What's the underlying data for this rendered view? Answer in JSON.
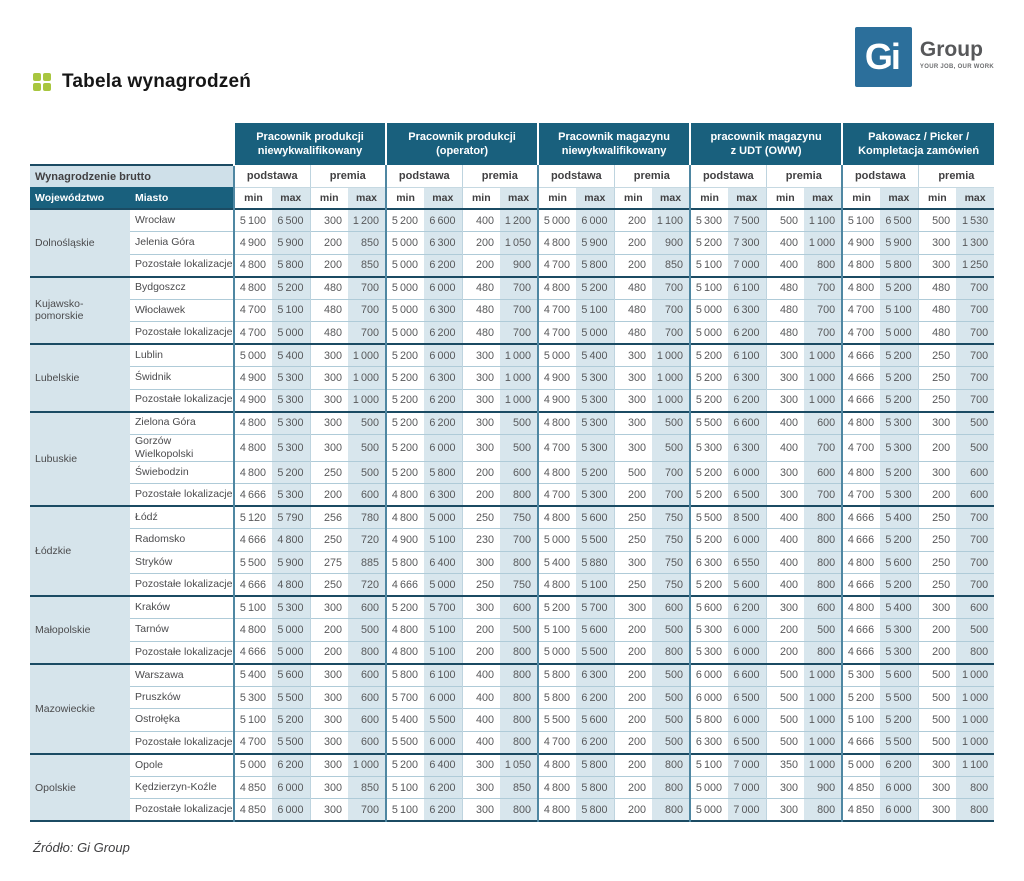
{
  "title": "Tabela wynagrodzeń",
  "source": "Źródło: Gi Group",
  "logo": {
    "mark": "Gi",
    "name": "Group",
    "tagline": "YOUR JOB, OUR WORK"
  },
  "colors": {
    "header_teal": "#19607D",
    "dark_separator": "#1B4B63",
    "max_cell_blue": "#D8E6ED",
    "region_cell_blue": "#D6E4EB",
    "accent_green": "#A8C63F",
    "logo_blue": "#2C6F9B"
  },
  "table": {
    "header_left": "Wynagrodzenie brutto",
    "col_region": "Województwo",
    "col_city": "Miasto",
    "sub_basic": "podstawa",
    "sub_bonus": "premia",
    "col_min": "min",
    "col_max": "max",
    "group_labels": [
      "Pracownik produkcji\nniewykwalifikowany",
      "Pracownik produkcji\n(operator)",
      "Pracownik magazynu\nniewykwalifikowany",
      "pracownik magazynu\nz UDT (OWW)",
      "Pakowacz / Picker /\nKompletacja zamówień"
    ],
    "regions": [
      {
        "name": "Dolnośląskie",
        "rows": [
          {
            "city": "Wrocław",
            "values": [
              5100,
              6500,
              300,
              1200,
              5200,
              6600,
              400,
              1200,
              5000,
              6000,
              200,
              1100,
              5300,
              7500,
              500,
              1100,
              5100,
              6500,
              500,
              1530
            ]
          },
          {
            "city": "Jelenia Góra",
            "values": [
              4900,
              5900,
              200,
              850,
              5000,
              6300,
              200,
              1050,
              4800,
              5900,
              200,
              900,
              5200,
              7300,
              400,
              1000,
              4900,
              5900,
              300,
              1300
            ]
          },
          {
            "city": "Pozostałe lokalizacje",
            "values": [
              4800,
              5800,
              200,
              850,
              5000,
              6200,
              200,
              900,
              4700,
              5800,
              200,
              850,
              5100,
              7000,
              400,
              800,
              4800,
              5800,
              300,
              1250
            ]
          }
        ]
      },
      {
        "name": "Kujawsko-pomorskie",
        "rows": [
          {
            "city": "Bydgoszcz",
            "values": [
              4800,
              5200,
              480,
              700,
              5000,
              6000,
              480,
              700,
              4800,
              5200,
              480,
              700,
              5100,
              6100,
              480,
              700,
              4800,
              5200,
              480,
              700
            ]
          },
          {
            "city": "Włocławek",
            "values": [
              4700,
              5100,
              480,
              700,
              5000,
              6300,
              480,
              700,
              4700,
              5100,
              480,
              700,
              5000,
              6300,
              480,
              700,
              4700,
              5100,
              480,
              700
            ]
          },
          {
            "city": "Pozostałe lokalizacje",
            "values": [
              4700,
              5000,
              480,
              700,
              5000,
              6200,
              480,
              700,
              4700,
              5000,
              480,
              700,
              5000,
              6200,
              480,
              700,
              4700,
              5000,
              480,
              700
            ]
          }
        ]
      },
      {
        "name": "Lubelskie",
        "rows": [
          {
            "city": "Lublin",
            "values": [
              5000,
              5400,
              300,
              1000,
              5200,
              6000,
              300,
              1000,
              5000,
              5400,
              300,
              1000,
              5200,
              6100,
              300,
              1000,
              4666,
              5200,
              250,
              700
            ]
          },
          {
            "city": "Świdnik",
            "values": [
              4900,
              5300,
              300,
              1000,
              5200,
              6300,
              300,
              1000,
              4900,
              5300,
              300,
              1000,
              5200,
              6300,
              300,
              1000,
              4666,
              5200,
              250,
              700
            ]
          },
          {
            "city": "Pozostałe lokalizacje",
            "values": [
              4900,
              5300,
              300,
              1000,
              5200,
              6200,
              300,
              1000,
              4900,
              5300,
              300,
              1000,
              5200,
              6200,
              300,
              1000,
              4666,
              5200,
              250,
              700
            ]
          }
        ]
      },
      {
        "name": "Lubuskie",
        "rows": [
          {
            "city": "Zielona Góra",
            "values": [
              4800,
              5300,
              300,
              500,
              5200,
              6200,
              300,
              500,
              4800,
              5300,
              300,
              500,
              5500,
              6600,
              400,
              600,
              4800,
              5300,
              300,
              500
            ]
          },
          {
            "city": "Gorzów\nWielkopolski",
            "values": [
              4800,
              5300,
              300,
              500,
              5200,
              6000,
              300,
              500,
              4700,
              5300,
              300,
              500,
              5300,
              6300,
              400,
              700,
              4700,
              5300,
              200,
              500
            ]
          },
          {
            "city": "Świebodzin",
            "values": [
              4800,
              5200,
              250,
              500,
              5200,
              5800,
              200,
              600,
              4800,
              5200,
              500,
              700,
              5200,
              6000,
              300,
              600,
              4800,
              5200,
              300,
              600
            ]
          },
          {
            "city": "Pozostałe lokalizacje",
            "values": [
              4666,
              5300,
              200,
              600,
              4800,
              6300,
              200,
              800,
              4700,
              5300,
              200,
              700,
              5200,
              6500,
              300,
              700,
              4700,
              5300,
              200,
              600
            ]
          }
        ]
      },
      {
        "name": "Łódzkie",
        "rows": [
          {
            "city": "Łódź",
            "values": [
              5120,
              5790,
              256,
              780,
              4800,
              5000,
              250,
              750,
              4800,
              5600,
              250,
              750,
              5500,
              8500,
              400,
              800,
              4666,
              5400,
              250,
              700
            ]
          },
          {
            "city": "Radomsko",
            "values": [
              4666,
              4800,
              250,
              720,
              4900,
              5100,
              230,
              700,
              5000,
              5500,
              250,
              750,
              5200,
              6000,
              400,
              800,
              4666,
              5200,
              250,
              700
            ]
          },
          {
            "city": "Stryków",
            "values": [
              5500,
              5900,
              275,
              885,
              5800,
              6400,
              300,
              800,
              5400,
              5880,
              300,
              750,
              6300,
              6550,
              400,
              800,
              4800,
              5600,
              250,
              700
            ]
          },
          {
            "city": "Pozostałe lokalizacje",
            "values": [
              4666,
              4800,
              250,
              720,
              4666,
              5000,
              250,
              750,
              4800,
              5100,
              250,
              750,
              5200,
              5600,
              400,
              800,
              4666,
              5200,
              250,
              700
            ]
          }
        ]
      },
      {
        "name": "Małopolskie",
        "rows": [
          {
            "city": "Kraków",
            "values": [
              5100,
              5300,
              300,
              600,
              5200,
              5700,
              300,
              600,
              5200,
              5700,
              300,
              600,
              5600,
              6200,
              300,
              600,
              4800,
              5400,
              300,
              600
            ]
          },
          {
            "city": "Tarnów",
            "values": [
              4800,
              5000,
              200,
              500,
              4800,
              5100,
              200,
              500,
              5100,
              5600,
              200,
              500,
              5300,
              6000,
              200,
              500,
              4666,
              5300,
              200,
              500
            ]
          },
          {
            "city": "Pozostałe lokalizacje",
            "values": [
              4666,
              5000,
              200,
              800,
              4800,
              5100,
              200,
              800,
              5000,
              5500,
              200,
              800,
              5300,
              6000,
              200,
              800,
              4666,
              5300,
              200,
              800
            ]
          }
        ]
      },
      {
        "name": "Mazowieckie",
        "rows": [
          {
            "city": "Warszawa",
            "values": [
              5400,
              5600,
              300,
              600,
              5800,
              6100,
              400,
              800,
              5800,
              6300,
              200,
              500,
              6000,
              6600,
              500,
              1000,
              5300,
              5600,
              500,
              1000
            ]
          },
          {
            "city": "Pruszków",
            "values": [
              5300,
              5500,
              300,
              600,
              5700,
              6000,
              400,
              800,
              5800,
              6200,
              200,
              500,
              6000,
              6500,
              500,
              1000,
              5200,
              5500,
              500,
              1000
            ]
          },
          {
            "city": "Ostrołęka",
            "values": [
              5100,
              5200,
              300,
              600,
              5400,
              5500,
              400,
              800,
              5500,
              5600,
              200,
              500,
              5800,
              6000,
              500,
              1000,
              5100,
              5200,
              500,
              1000
            ]
          },
          {
            "city": "Pozostałe lokalizacje",
            "values": [
              4700,
              5500,
              300,
              600,
              5500,
              6000,
              400,
              800,
              4700,
              6200,
              200,
              500,
              6300,
              6500,
              500,
              1000,
              4666,
              5500,
              500,
              1000
            ]
          }
        ]
      },
      {
        "name": "Opolskie",
        "rows": [
          {
            "city": "Opole",
            "values": [
              5000,
              6200,
              300,
              1000,
              5200,
              6400,
              300,
              1050,
              4800,
              5800,
              200,
              800,
              5100,
              7000,
              350,
              1000,
              5000,
              6200,
              300,
              1100
            ]
          },
          {
            "city": "Kędzierzyn-Koźle",
            "values": [
              4850,
              6000,
              300,
              850,
              5100,
              6200,
              300,
              850,
              4800,
              5800,
              200,
              800,
              5000,
              7000,
              300,
              900,
              4850,
              6000,
              300,
              800
            ]
          },
          {
            "city": "Pozostałe lokalizacje",
            "values": [
              4850,
              6000,
              300,
              700,
              5100,
              6200,
              300,
              800,
              4800,
              5800,
              200,
              800,
              5000,
              7000,
              300,
              800,
              4850,
              6000,
              300,
              800
            ]
          }
        ]
      }
    ]
  }
}
